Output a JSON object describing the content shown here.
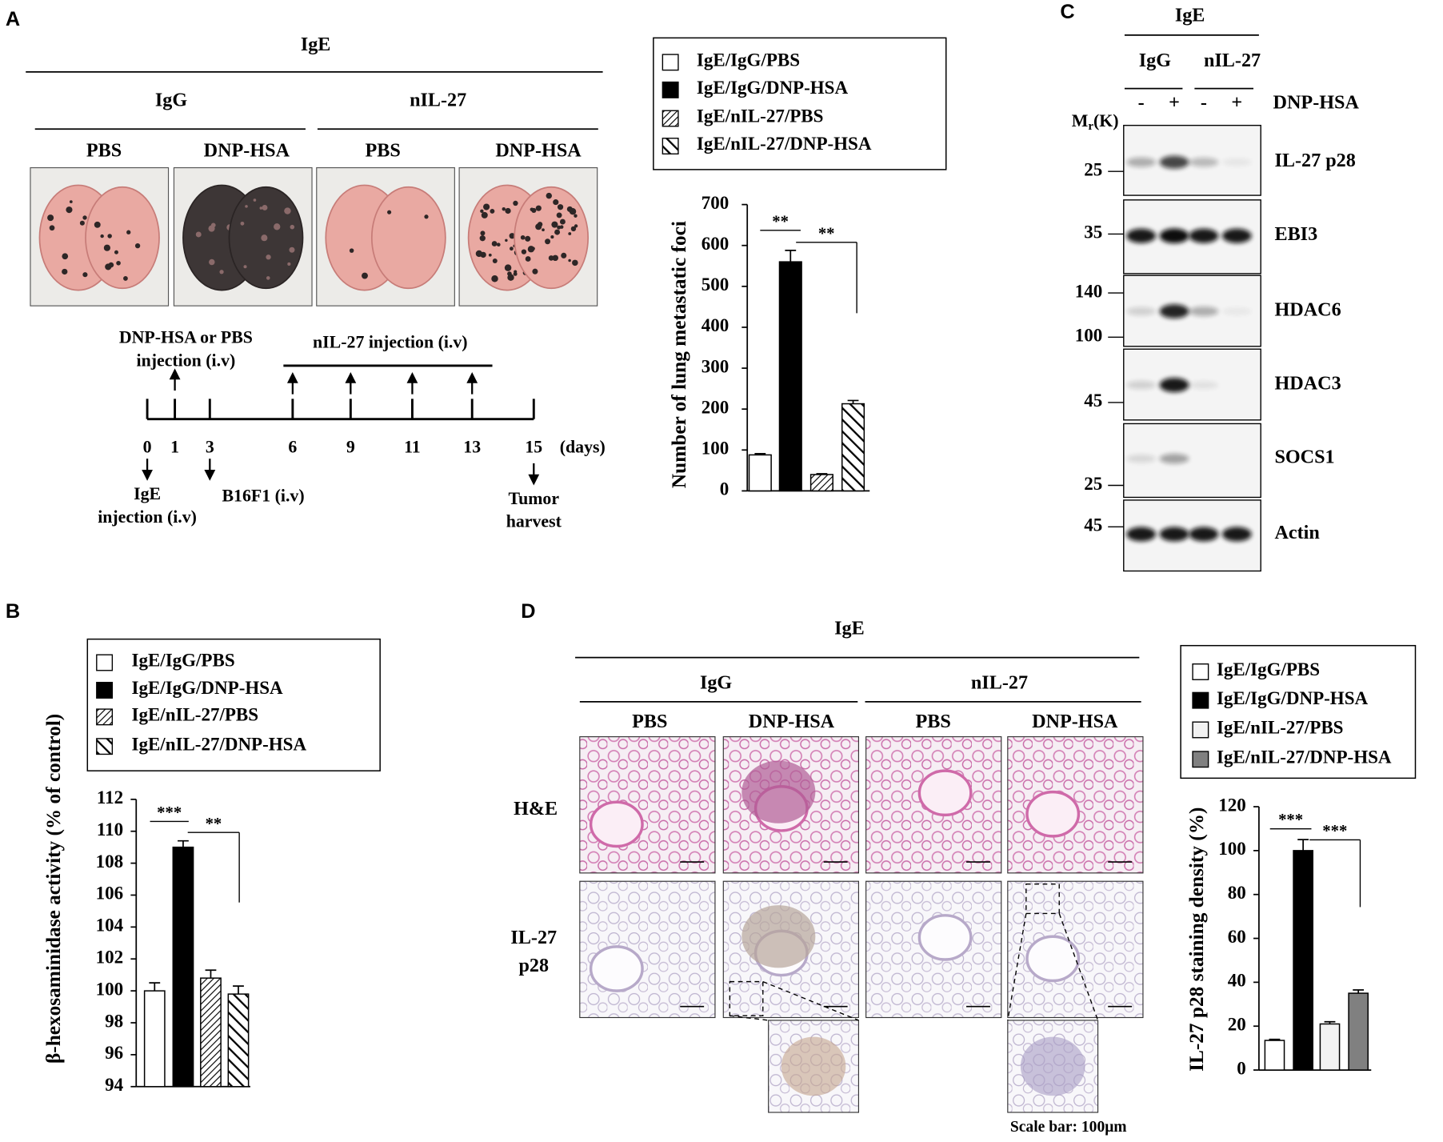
{
  "panel_a": {
    "label": "A",
    "header": "IgE",
    "groups": [
      "IgG",
      "nIL-27"
    ],
    "conditions": [
      "PBS",
      "DNP-HSA",
      "PBS",
      "DNP-HSA"
    ],
    "timeline": {
      "first_injection": [
        "DNP-HSA or PBS",
        "injection (i.v)"
      ],
      "treatment": "nIL-27 injection (i.v)",
      "days": [
        0,
        1,
        3,
        6,
        9,
        11,
        13,
        15
      ],
      "unit": "(days)",
      "ige": [
        "IgE",
        "injection (i.v)"
      ],
      "tumor": "B16F1 (i.v)",
      "harvest": [
        "Tumor",
        "harvest"
      ]
    }
  },
  "panel_b": {
    "label": "B"
  },
  "panel_c": {
    "label": "C",
    "header": "IgE",
    "groups": [
      "IgG",
      "nIL-27"
    ],
    "lanes": [
      "-",
      "+",
      "-",
      "+"
    ],
    "treatment": "DNP-HSA",
    "mw_label": "M",
    "mw_subscript": "r",
    "mw_unit": "(K)",
    "blots": [
      {
        "name": "IL-27 p28",
        "markers": [
          25
        ]
      },
      {
        "name": "EBI3",
        "markers": [
          35
        ]
      },
      {
        "name": "HDAC6",
        "markers": [
          140,
          100
        ]
      },
      {
        "name": "HDAC3",
        "markers": [
          45
        ]
      },
      {
        "name": "SOCS1",
        "markers": [
          25
        ]
      },
      {
        "name": "Actin",
        "markers": [
          45
        ]
      }
    ]
  },
  "panel_d": {
    "label": "D",
    "header": "IgE",
    "groups": [
      "IgG",
      "nIL-27"
    ],
    "conditions": [
      "PBS",
      "DNP-HSA",
      "PBS",
      "DNP-HSA"
    ],
    "rows": [
      [
        "H&E"
      ],
      [
        "IL-27",
        "p28"
      ]
    ],
    "scale_bar": "Scale bar: 100μm"
  },
  "chart_data": [
    {
      "type": "bar",
      "ylabel": "Number of lung metastatic foci",
      "categories": [
        "IgE/IgG/PBS",
        "IgE/IgG/DNP-HSA",
        "IgE/nIL-27/PBS",
        "IgE/nIL-27/DNP-HSA"
      ],
      "values": [
        88,
        560,
        40,
        213
      ],
      "errors": [
        3,
        28,
        2,
        8
      ],
      "fills": [
        "#ffffff",
        "#000000",
        "hatch-dense",
        "hatch-wide"
      ],
      "ylim": [
        0,
        700
      ],
      "yticks": [
        0,
        100,
        200,
        300,
        400,
        500,
        600,
        700
      ],
      "significance": [
        "**",
        "**"
      ]
    },
    {
      "type": "bar",
      "ylabel": "β-hexosaminidase activity  (% of control)",
      "categories": [
        "IgE/IgG/PBS",
        "IgE/IgG/DNP-HSA",
        "IgE/nIL-27/PBS",
        "IgE/nIL-27/DNP-HSA"
      ],
      "values": [
        100,
        109,
        100.8,
        99.8
      ],
      "errors": [
        0.5,
        0.4,
        0.5,
        0.5
      ],
      "fills": [
        "#ffffff",
        "#000000",
        "hatch-dense",
        "hatch-wide"
      ],
      "ylim": [
        94,
        112
      ],
      "yticks": [
        94,
        96,
        98,
        100,
        102,
        104,
        106,
        108,
        110,
        112
      ],
      "significance": [
        "***",
        "**"
      ]
    },
    {
      "type": "bar",
      "ylabel": "IL-27 p28 staining density (%)",
      "categories": [
        "IgE/IgG/PBS",
        "IgE/IgG/DNP-HSA",
        "IgE/nIL-27/PBS",
        "IgE/nIL-27/DNP-HSA"
      ],
      "values": [
        13.5,
        100,
        21,
        35
      ],
      "errors": [
        0.5,
        5,
        1,
        1.5
      ],
      "fills": [
        "#ffffff",
        "#000000",
        "#f2f2f2",
        "#808080"
      ],
      "ylim": [
        0,
        120
      ],
      "yticks": [
        0,
        20,
        40,
        60,
        80,
        100,
        120
      ],
      "significance": [
        "***",
        "***"
      ]
    }
  ]
}
